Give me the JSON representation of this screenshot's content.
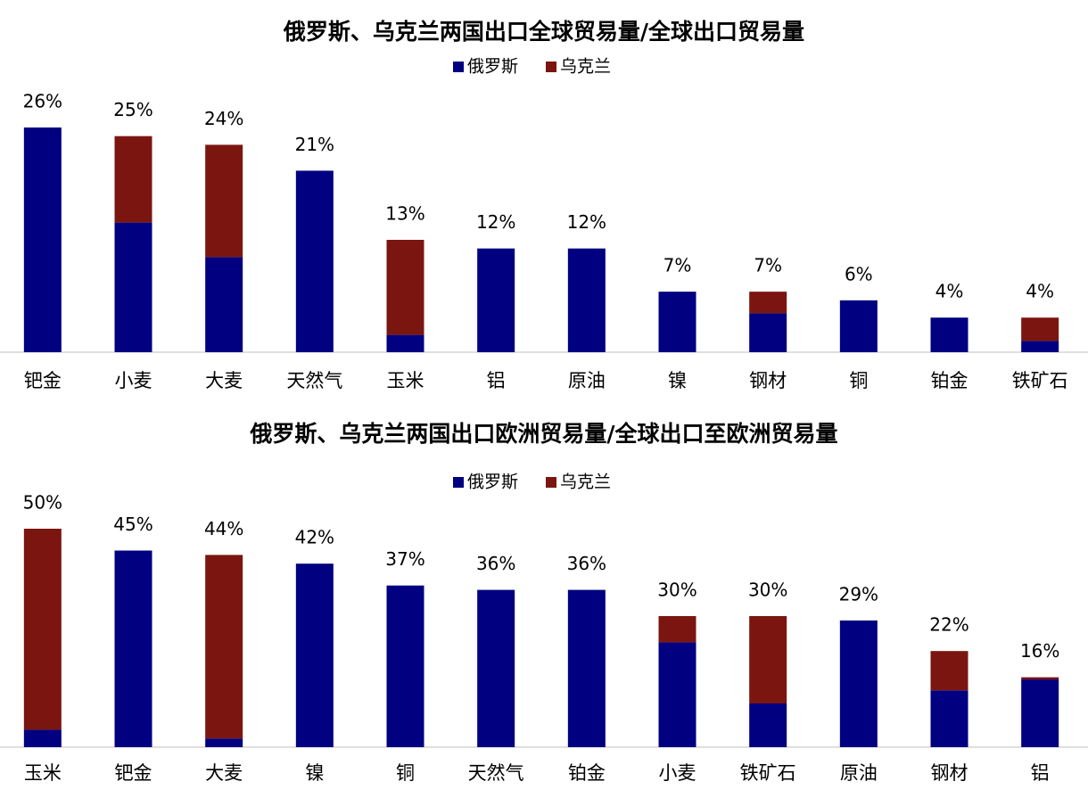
{
  "chart_data": [
    {
      "type": "stacked_bar",
      "title": "俄罗斯、乌克兰两国出口全球贸易量/全球出口贸易量",
      "categories": [
        "钯金",
        "小麦",
        "大麦",
        "天然气",
        "玉米",
        "铝",
        "原油",
        "镍",
        "钢材",
        "铜",
        "铂金",
        "铁矿石"
      ],
      "series": [
        {
          "name": "俄罗斯",
          "color": "#000080",
          "values": [
            26,
            15,
            11,
            21,
            2,
            12,
            12,
            7,
            4.5,
            6,
            4,
            1.3
          ]
        },
        {
          "name": "乌克兰",
          "color": "#7b1510",
          "values": [
            0,
            10,
            13,
            0,
            11,
            0,
            0,
            0,
            2.5,
            0,
            0,
            2.7
          ]
        }
      ],
      "totals": [
        26,
        25,
        24,
        21,
        13,
        12,
        12,
        7,
        7,
        6,
        4,
        4
      ],
      "total_labels": [
        "26%",
        "25%",
        "24%",
        "21%",
        "13%",
        "12%",
        "12%",
        "7%",
        "7%",
        "6%",
        "4%",
        "4%"
      ],
      "ylim": [
        0,
        26
      ]
    },
    {
      "type": "stacked_bar",
      "title": "俄罗斯、乌克兰两国出口欧洲贸易量/全球出口至欧洲贸易量",
      "categories": [
        "玉米",
        "钯金",
        "大麦",
        "镍",
        "铜",
        "天然气",
        "铂金",
        "小麦",
        "铁矿石",
        "原油",
        "钢材",
        "铝"
      ],
      "series": [
        {
          "name": "俄罗斯",
          "color": "#000080",
          "values": [
            4,
            45,
            2,
            42,
            37,
            36,
            36,
            24,
            10,
            29,
            13,
            15.5
          ]
        },
        {
          "name": "乌克兰",
          "color": "#7b1510",
          "values": [
            46,
            0,
            42,
            0,
            0,
            0,
            0,
            6,
            20,
            0,
            9,
            0.5
          ]
        }
      ],
      "totals": [
        50,
        45,
        44,
        42,
        37,
        36,
        36,
        30,
        30,
        29,
        22,
        16
      ],
      "total_labels": [
        "50%",
        "45%",
        "44%",
        "42%",
        "37%",
        "36%",
        "36%",
        "30%",
        "30%",
        "29%",
        "22%",
        "16%"
      ],
      "ylim": [
        0,
        50
      ]
    }
  ]
}
